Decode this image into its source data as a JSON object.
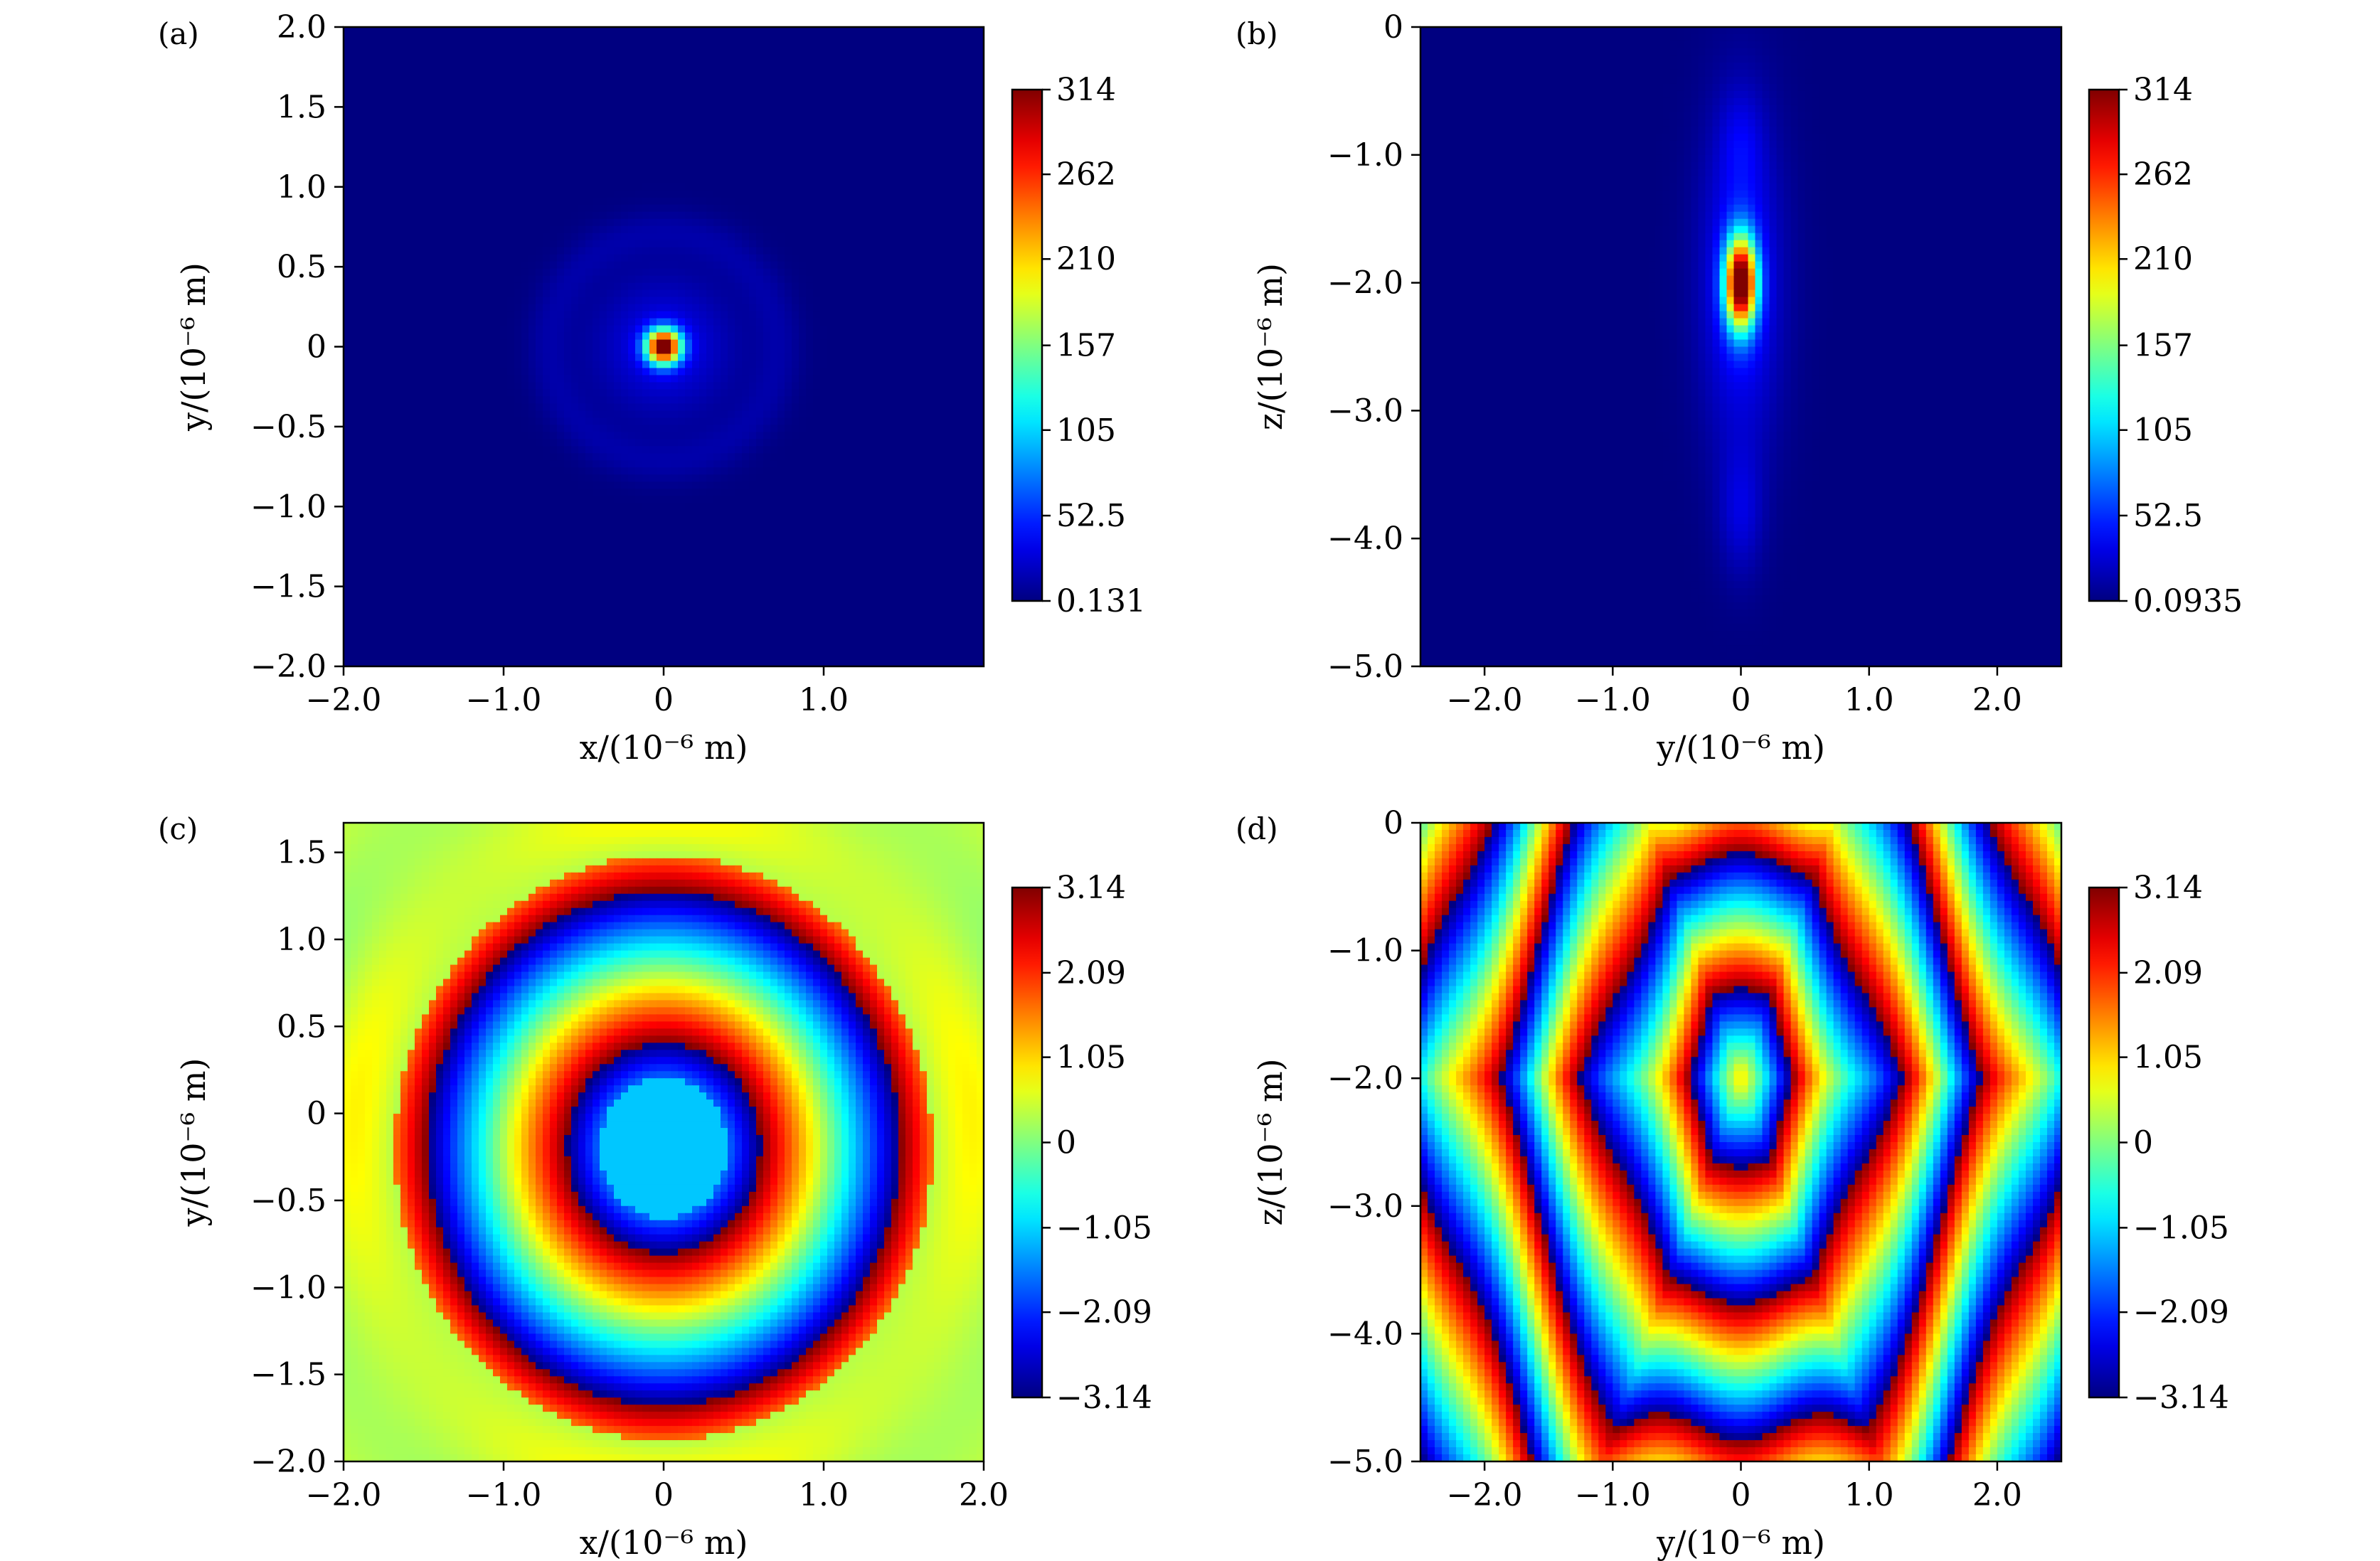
{
  "chart_data": [
    {
      "type": "heatmap",
      "panel_label": "(a)",
      "field": "intensity",
      "xlabel": "x/(10⁻⁶ m)",
      "ylabel": "y/(10⁻⁶ m)",
      "xlim": [
        -2.0,
        2.0
      ],
      "ylim": [
        -2.0,
        2.0
      ],
      "x_ticks": [
        -2.0,
        -1.0,
        0,
        1.0
      ],
      "x_tick_labels": [
        "−2.0",
        "−1.0",
        "0",
        "1.0"
      ],
      "y_ticks": [
        -2.0,
        -1.5,
        -1.0,
        -0.5,
        0,
        0.5,
        1.0,
        1.5,
        2.0
      ],
      "y_tick_labels": [
        "−2.0",
        "−1.5",
        "−1.0",
        "−0.5",
        "0",
        "0.5",
        "1.0",
        "1.5",
        "2.0"
      ],
      "colorbar": {
        "colormap": "jet",
        "min": 0.131,
        "max": 314,
        "ticks": [
          314,
          262,
          210,
          157,
          105,
          52.5,
          0.131
        ],
        "tick_labels": [
          "314",
          "262",
          "210",
          "157",
          "105",
          "52.5",
          "0.131"
        ]
      },
      "features": {
        "peak_center": [
          0,
          0
        ],
        "peak_value": 314,
        "background_value": 0.131
      }
    },
    {
      "type": "heatmap",
      "panel_label": "(b)",
      "field": "intensity",
      "xlabel": "y/(10⁻⁶ m)",
      "ylabel": "z/(10⁻⁶ m)",
      "xlim": [
        -2.5,
        2.5
      ],
      "ylim": [
        -5.0,
        0
      ],
      "x_ticks": [
        -2.0,
        -1.0,
        0,
        1.0,
        2.0
      ],
      "x_tick_labels": [
        "−2.0",
        "−1.0",
        "0",
        "1.0",
        "2.0"
      ],
      "y_ticks": [
        0,
        -1.0,
        -2.0,
        -3.0,
        -4.0,
        -5.0
      ],
      "y_tick_labels": [
        "0",
        "−1.0",
        "−2.0",
        "−3.0",
        "−4.0",
        "−5.0"
      ],
      "colorbar": {
        "colormap": "jet",
        "min": 0.0935,
        "max": 314,
        "ticks": [
          314,
          262,
          210,
          157,
          105,
          52.5,
          0.0935
        ],
        "tick_labels": [
          "314",
          "262",
          "210",
          "157",
          "105",
          "52.5",
          "0.0935"
        ]
      },
      "features": {
        "peak_center": [
          0,
          -2.0
        ],
        "peak_value": 314,
        "background_value": 0.0935
      }
    },
    {
      "type": "heatmap",
      "panel_label": "(c)",
      "field": "phase",
      "xlabel": "x/(10⁻⁶ m)",
      "ylabel": "y/(10⁻⁶ m)",
      "xlim": [
        -2.0,
        2.0
      ],
      "ylim": [
        -2.0,
        1.67
      ],
      "x_ticks": [
        -2.0,
        -1.0,
        0,
        1.0,
        2.0
      ],
      "x_tick_labels": [
        "−2.0",
        "−1.0",
        "0",
        "1.0",
        "2.0"
      ],
      "y_ticks": [
        -2.0,
        -1.5,
        -1.0,
        -0.5,
        0,
        0.5,
        1.0,
        1.5
      ],
      "y_tick_labels": [
        "−2.0",
        "−1.5",
        "−1.0",
        "−0.5",
        "0",
        "0.5",
        "1.0",
        "1.5"
      ],
      "colorbar": {
        "colormap": "jet",
        "min": -3.14,
        "max": 3.14,
        "ticks": [
          3.14,
          2.09,
          1.05,
          0,
          -1.05,
          -2.09,
          -3.14
        ],
        "tick_labels": [
          "3.14",
          "2.09",
          "1.05",
          "0",
          "−1.05",
          "−2.09",
          "−3.14"
        ]
      },
      "features": {
        "pattern": "concentric rings",
        "center": [
          0,
          -0.2
        ]
      }
    },
    {
      "type": "heatmap",
      "panel_label": "(d)",
      "field": "phase",
      "xlabel": "y/(10⁻⁶ m)",
      "ylabel": "z/(10⁻⁶ m)",
      "xlim": [
        -2.5,
        2.5
      ],
      "ylim": [
        -5.0,
        0
      ],
      "x_ticks": [
        -2.0,
        -1.0,
        0,
        1.0,
        2.0
      ],
      "x_tick_labels": [
        "−2.0",
        "−1.0",
        "0",
        "1.0",
        "2.0"
      ],
      "y_ticks": [
        0,
        -1.0,
        -2.0,
        -3.0,
        -4.0,
        -5.0
      ],
      "y_tick_labels": [
        "0",
        "−1.0",
        "−2.0",
        "−3.0",
        "−4.0",
        "−5.0"
      ],
      "colorbar": {
        "colormap": "jet",
        "min": -3.14,
        "max": 3.14,
        "ticks": [
          3.14,
          2.09,
          1.05,
          0,
          -1.05,
          -2.09,
          -3.14
        ],
        "tick_labels": [
          "3.14",
          "2.09",
          "1.05",
          "0",
          "−1.05",
          "−2.09",
          "−3.14"
        ]
      },
      "features": {
        "pattern": "hexagonal phase fringes",
        "center": [
          0,
          -2.0
        ]
      }
    }
  ]
}
